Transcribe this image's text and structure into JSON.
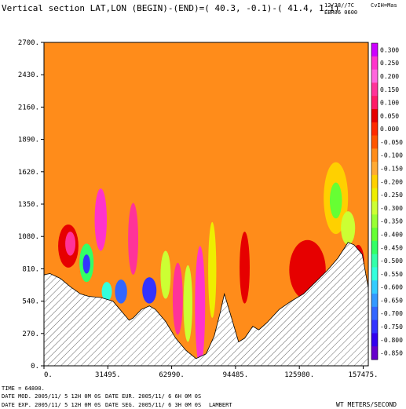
{
  "header": {
    "title": "Vertical section LAT,LON (BEGIN)-(END)=( 40.3,  -0.1)-( 41.4,   1.1)",
    "date_code": "12/28//7C",
    "model_code": "EBR06 0600",
    "corner_label": "CvIH=Mas"
  },
  "footer": {
    "time_line": "TIME =    64800.",
    "line1_left": "DATE MOD. 2005/11/ 5  12H 0M 0S",
    "line1_right": "DATE EUR. 2005/11/ 6   6H 0M 0S",
    "line2_left": "DATE EXP.  2005/11/ 5  12H 0M 0S",
    "line2_right": "DATE SEG. 2005/11/ 6   3H 0M 0S",
    "projection": "LAMBERT",
    "units": "WT METERS/SECOND"
  },
  "colors": {
    "background_field": "#ff8c1a",
    "hatch": "#555555"
  },
  "chart_data": {
    "type": "heatmap",
    "title": "Vertical section LAT,LON (BEGIN)-(END)=( 40.3,  -0.1)-( 41.4,   1.1)",
    "units": "WT METERS/SECOND",
    "x_tick_labels": [
      "0.",
      "31495.",
      "62990.",
      "94485.",
      "125980.",
      "157475."
    ],
    "y_tick_labels": [
      "0.",
      "270.",
      "540.",
      "810.",
      "1080.",
      "1350.",
      "1620.",
      "1890.",
      "2160.",
      "2430.",
      "2700."
    ],
    "xlim": [
      0,
      160000
    ],
    "ylim": [
      0,
      2700
    ],
    "color_levels": [
      "0.300",
      "0.250",
      "0.200",
      "0.150",
      "0.100",
      "0.050",
      "0.000",
      "-0.050",
      "-0.100",
      "-0.150",
      "-0.200",
      "-0.250",
      "-0.300",
      "-0.350",
      "-0.400",
      "-0.450",
      "-0.500",
      "-0.550",
      "-0.600",
      "-0.650",
      "-0.700",
      "-0.750",
      "-0.800",
      "-0.850"
    ],
    "color_scale": [
      "#cc00ff",
      "#ff33cc",
      "#ff66dd",
      "#ff3399",
      "#ff1a66",
      "#e60000",
      "#ff2a00",
      "#ff5500",
      "#ff8c1a",
      "#ffaa33",
      "#ffd000",
      "#eeee00",
      "#ccff33",
      "#99ff33",
      "#66ff33",
      "#33ff66",
      "#33ffaa",
      "#33ffdd",
      "#33ccff",
      "#3399ff",
      "#3366ff",
      "#3333ff",
      "#3300ee",
      "#6600cc"
    ],
    "terrain": [
      {
        "x": 0,
        "y": 760
      },
      {
        "x": 3000,
        "y": 770
      },
      {
        "x": 8000,
        "y": 730
      },
      {
        "x": 13000,
        "y": 660
      },
      {
        "x": 18000,
        "y": 600
      },
      {
        "x": 22000,
        "y": 580
      },
      {
        "x": 28000,
        "y": 570
      },
      {
        "x": 34000,
        "y": 540
      },
      {
        "x": 38000,
        "y": 460
      },
      {
        "x": 42000,
        "y": 380
      },
      {
        "x": 44000,
        "y": 400
      },
      {
        "x": 48000,
        "y": 470
      },
      {
        "x": 52000,
        "y": 500
      },
      {
        "x": 55000,
        "y": 470
      },
      {
        "x": 60000,
        "y": 370
      },
      {
        "x": 65000,
        "y": 230
      },
      {
        "x": 70000,
        "y": 130
      },
      {
        "x": 75000,
        "y": 60
      },
      {
        "x": 80000,
        "y": 100
      },
      {
        "x": 84000,
        "y": 250
      },
      {
        "x": 87000,
        "y": 450
      },
      {
        "x": 89000,
        "y": 600
      },
      {
        "x": 92000,
        "y": 430
      },
      {
        "x": 96000,
        "y": 200
      },
      {
        "x": 99000,
        "y": 230
      },
      {
        "x": 103000,
        "y": 330
      },
      {
        "x": 106000,
        "y": 300
      },
      {
        "x": 110000,
        "y": 360
      },
      {
        "x": 116000,
        "y": 470
      },
      {
        "x": 122000,
        "y": 540
      },
      {
        "x": 128000,
        "y": 600
      },
      {
        "x": 134000,
        "y": 700
      },
      {
        "x": 140000,
        "y": 800
      },
      {
        "x": 145000,
        "y": 900
      },
      {
        "x": 150000,
        "y": 1030
      },
      {
        "x": 153000,
        "y": 1010
      },
      {
        "x": 157000,
        "y": 930
      },
      {
        "x": 160000,
        "y": 650
      }
    ],
    "field_features": [
      {
        "x": 12000,
        "y": 1000,
        "rx": 5000,
        "ry": 180,
        "level": "0.050"
      },
      {
        "x": 13000,
        "y": 1020,
        "rx": 2500,
        "ry": 100,
        "level": "0.150"
      },
      {
        "x": 21000,
        "y": 860,
        "rx": 3500,
        "ry": 160,
        "level": "-0.450"
      },
      {
        "x": 21000,
        "y": 850,
        "rx": 1800,
        "ry": 80,
        "level": "-0.750"
      },
      {
        "x": 28000,
        "y": 1220,
        "rx": 3000,
        "ry": 260,
        "level": "0.250"
      },
      {
        "x": 31000,
        "y": 620,
        "rx": 2500,
        "ry": 80,
        "level": "-0.550"
      },
      {
        "x": 38000,
        "y": 620,
        "rx": 3000,
        "ry": 100,
        "level": "-0.700"
      },
      {
        "x": 44000,
        "y": 1060,
        "rx": 2500,
        "ry": 300,
        "level": "0.150"
      },
      {
        "x": 52000,
        "y": 630,
        "rx": 3500,
        "ry": 110,
        "level": "-0.750"
      },
      {
        "x": 60000,
        "y": 760,
        "rx": 2500,
        "ry": 200,
        "level": "-0.300"
      },
      {
        "x": 66000,
        "y": 560,
        "rx": 2500,
        "ry": 300,
        "level": "0.150"
      },
      {
        "x": 71000,
        "y": 520,
        "rx": 2200,
        "ry": 320,
        "level": "-0.300"
      },
      {
        "x": 77000,
        "y": 500,
        "rx": 2500,
        "ry": 500,
        "level": "0.250"
      },
      {
        "x": 83000,
        "y": 800,
        "rx": 2000,
        "ry": 400,
        "level": "-0.250"
      },
      {
        "x": 99000,
        "y": 820,
        "rx": 2500,
        "ry": 300,
        "level": "0.050"
      },
      {
        "x": 130000,
        "y": 800,
        "rx": 9000,
        "ry": 250,
        "level": "0.050"
      },
      {
        "x": 144000,
        "y": 1400,
        "rx": 6000,
        "ry": 300,
        "level": "-0.200"
      },
      {
        "x": 144000,
        "y": 1380,
        "rx": 3000,
        "ry": 150,
        "level": "-0.400"
      },
      {
        "x": 150000,
        "y": 1150,
        "rx": 3500,
        "ry": 140,
        "level": "-0.300"
      },
      {
        "x": 155000,
        "y": 860,
        "rx": 3000,
        "ry": 150,
        "level": "0.050"
      }
    ]
  }
}
